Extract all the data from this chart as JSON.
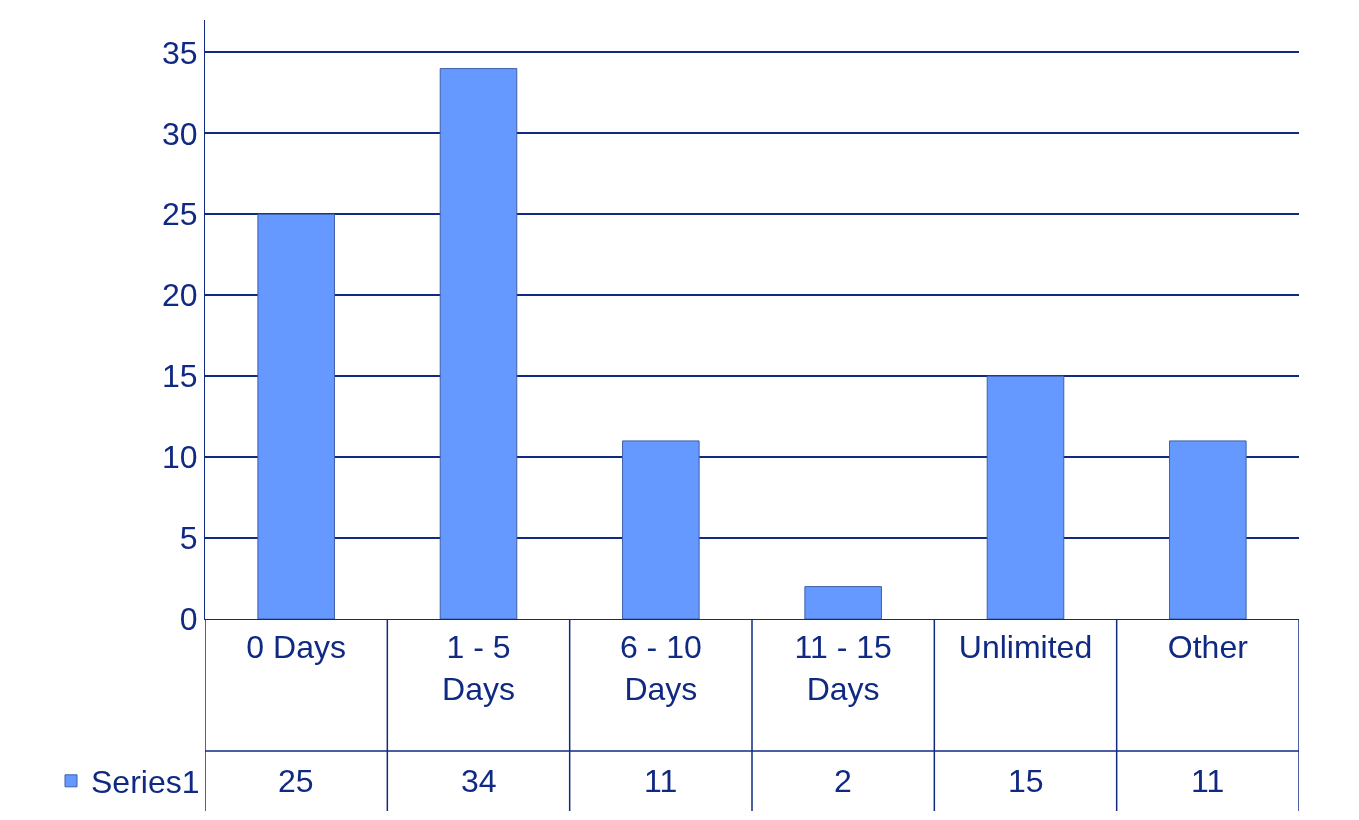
{
  "chart_data": {
    "type": "bar",
    "categories": [
      "0 Days",
      "1 - 5 Days",
      "6 - 10 Days",
      "11 - 15 Days",
      "Unlimited",
      "Other"
    ],
    "series": [
      {
        "name": "Series1",
        "color": "#6699ff",
        "values": [
          25,
          34,
          11,
          2,
          15,
          11
        ]
      }
    ],
    "ylim": [
      0,
      37
    ],
    "yticks": [
      0,
      5,
      10,
      15,
      20,
      25,
      30,
      35
    ],
    "grid": "y",
    "legend": "bottom left",
    "data_labels": true
  }
}
